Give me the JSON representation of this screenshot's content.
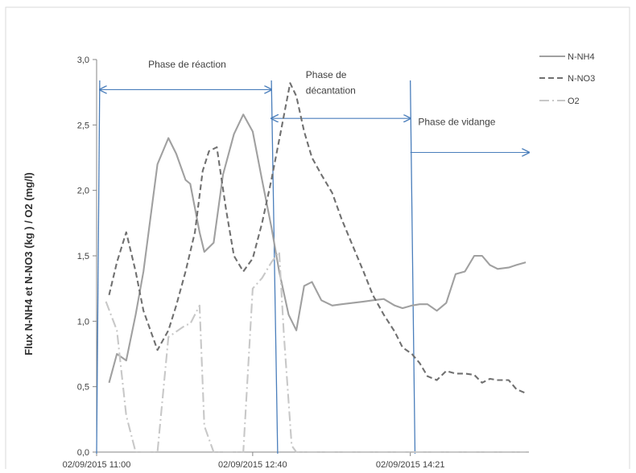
{
  "chart_data": {
    "type": "line",
    "xlabel": "",
    "ylabel": "Flux N-NH4 et N-NO3 (kg ) / O2 (mg/l)",
    "ylim": [
      0,
      3.0
    ],
    "grid": false,
    "legend_position": "top-right",
    "y_ticks": [
      "0,0",
      "0,5",
      "1,0",
      "1,5",
      "2,0",
      "2,5",
      "3,0"
    ],
    "x_tick_labels": [
      {
        "label": "02/09/2015 11:00",
        "x": 0
      },
      {
        "label": "02/09/2015 12:40",
        "x": 100
      },
      {
        "label": "02/09/2015 14:21",
        "x": 201
      }
    ],
    "x_range": [
      0,
      277
    ],
    "series": [
      {
        "name": "N-NH4",
        "style": "solid",
        "color": "#a0a0a0",
        "x": [
          8,
          13,
          19,
          25,
          30,
          39,
          46,
          51,
          57,
          60,
          66,
          69,
          75,
          81,
          88,
          94,
          100,
          106,
          112,
          117,
          123,
          128,
          133,
          138,
          144,
          151,
          157,
          164,
          171,
          177,
          184,
          191,
          196,
          202,
          207,
          212,
          218,
          224,
          230,
          236,
          242,
          247,
          252,
          257,
          264,
          269,
          275
        ],
        "values": [
          0.53,
          0.75,
          0.7,
          1.05,
          1.38,
          2.2,
          2.4,
          2.28,
          2.08,
          2.05,
          1.68,
          1.53,
          1.6,
          2.12,
          2.43,
          2.58,
          2.45,
          2.08,
          1.72,
          1.38,
          1.05,
          0.93,
          1.27,
          1.3,
          1.16,
          1.12,
          1.13,
          1.14,
          1.15,
          1.16,
          1.17,
          1.12,
          1.1,
          1.12,
          1.13,
          1.13,
          1.08,
          1.14,
          1.36,
          1.38,
          1.5,
          1.5,
          1.43,
          1.4,
          1.41,
          1.43,
          1.45
        ]
      },
      {
        "name": "N-NO3",
        "style": "dashed",
        "color": "#707070",
        "x": [
          8,
          13,
          19,
          25,
          30,
          39,
          46,
          51,
          57,
          63,
          68,
          72,
          77,
          83,
          88,
          94,
          100,
          106,
          112,
          118,
          124,
          128,
          133,
          138,
          144,
          151,
          157,
          164,
          171,
          177,
          184,
          191,
          196,
          202,
          207,
          212,
          218,
          224,
          230,
          236,
          242,
          247,
          252,
          257,
          264,
          269,
          275
        ],
        "values": [
          1.2,
          1.45,
          1.68,
          1.38,
          1.08,
          0.78,
          0.93,
          1.12,
          1.38,
          1.68,
          2.15,
          2.3,
          2.33,
          1.85,
          1.5,
          1.38,
          1.48,
          1.75,
          2.08,
          2.45,
          2.82,
          2.72,
          2.45,
          2.25,
          2.12,
          1.98,
          1.78,
          1.58,
          1.38,
          1.2,
          1.05,
          0.92,
          0.8,
          0.75,
          0.68,
          0.58,
          0.55,
          0.62,
          0.6,
          0.6,
          0.59,
          0.53,
          0.56,
          0.55,
          0.55,
          0.48,
          0.45
        ]
      },
      {
        "name": "O2",
        "style": "dash-dot",
        "color": "#c8c8c8",
        "x": [
          6,
          13,
          19,
          25,
          30,
          39,
          46,
          51,
          57,
          60,
          66,
          69,
          75,
          81,
          88,
          94,
          100,
          106,
          112,
          117,
          120,
          125,
          128,
          133,
          138,
          144,
          151,
          157,
          164,
          171,
          177,
          184,
          191,
          196,
          202,
          207,
          212,
          218,
          224,
          230,
          236,
          242,
          247,
          252,
          257,
          264,
          269,
          275
        ],
        "values": [
          1.15,
          0.93,
          0.28,
          0.0,
          0.0,
          0.0,
          0.88,
          0.92,
          0.97,
          0.98,
          1.12,
          0.2,
          0.0,
          0.0,
          0.0,
          0.0,
          1.25,
          1.33,
          1.45,
          1.53,
          0.9,
          0.05,
          0.0,
          0.0,
          0.0,
          0.0,
          0.0,
          0.0,
          0.0,
          0.0,
          0.0,
          0.0,
          0.0,
          0.0,
          0.0,
          0.0,
          0.0,
          0.0,
          0.0,
          0.0,
          0.0,
          0.0,
          0.0,
          0.0,
          0.0,
          0.0,
          0.0,
          0.0
        ]
      }
    ],
    "phase_lines": [
      {
        "x_bottom": 0,
        "x_top": 2
      },
      {
        "x_bottom": 116,
        "x_top": 112
      },
      {
        "x_bottom": 204,
        "x_top": 201
      }
    ],
    "annotations": [
      {
        "text": "Phase de réaction",
        "x": 58,
        "y": 2.94,
        "anchor": "middle"
      },
      {
        "text": "Phase de",
        "x": 134,
        "y": 2.86,
        "anchor": "start"
      },
      {
        "text": "décantation",
        "x": 134,
        "y": 2.74,
        "anchor": "start"
      },
      {
        "text": "Phase de vidange",
        "x": 206,
        "y": 2.5,
        "anchor": "start"
      }
    ],
    "arrows": [
      {
        "x1": 2,
        "x2": 112,
        "y": 2.77,
        "heads": "both"
      },
      {
        "x1": 112,
        "x2": 201,
        "y": 2.55,
        "heads": "both"
      },
      {
        "x1": 201,
        "x2": 277,
        "y": 2.29,
        "heads": "end"
      }
    ],
    "phase_color": "#4a7ebb"
  }
}
